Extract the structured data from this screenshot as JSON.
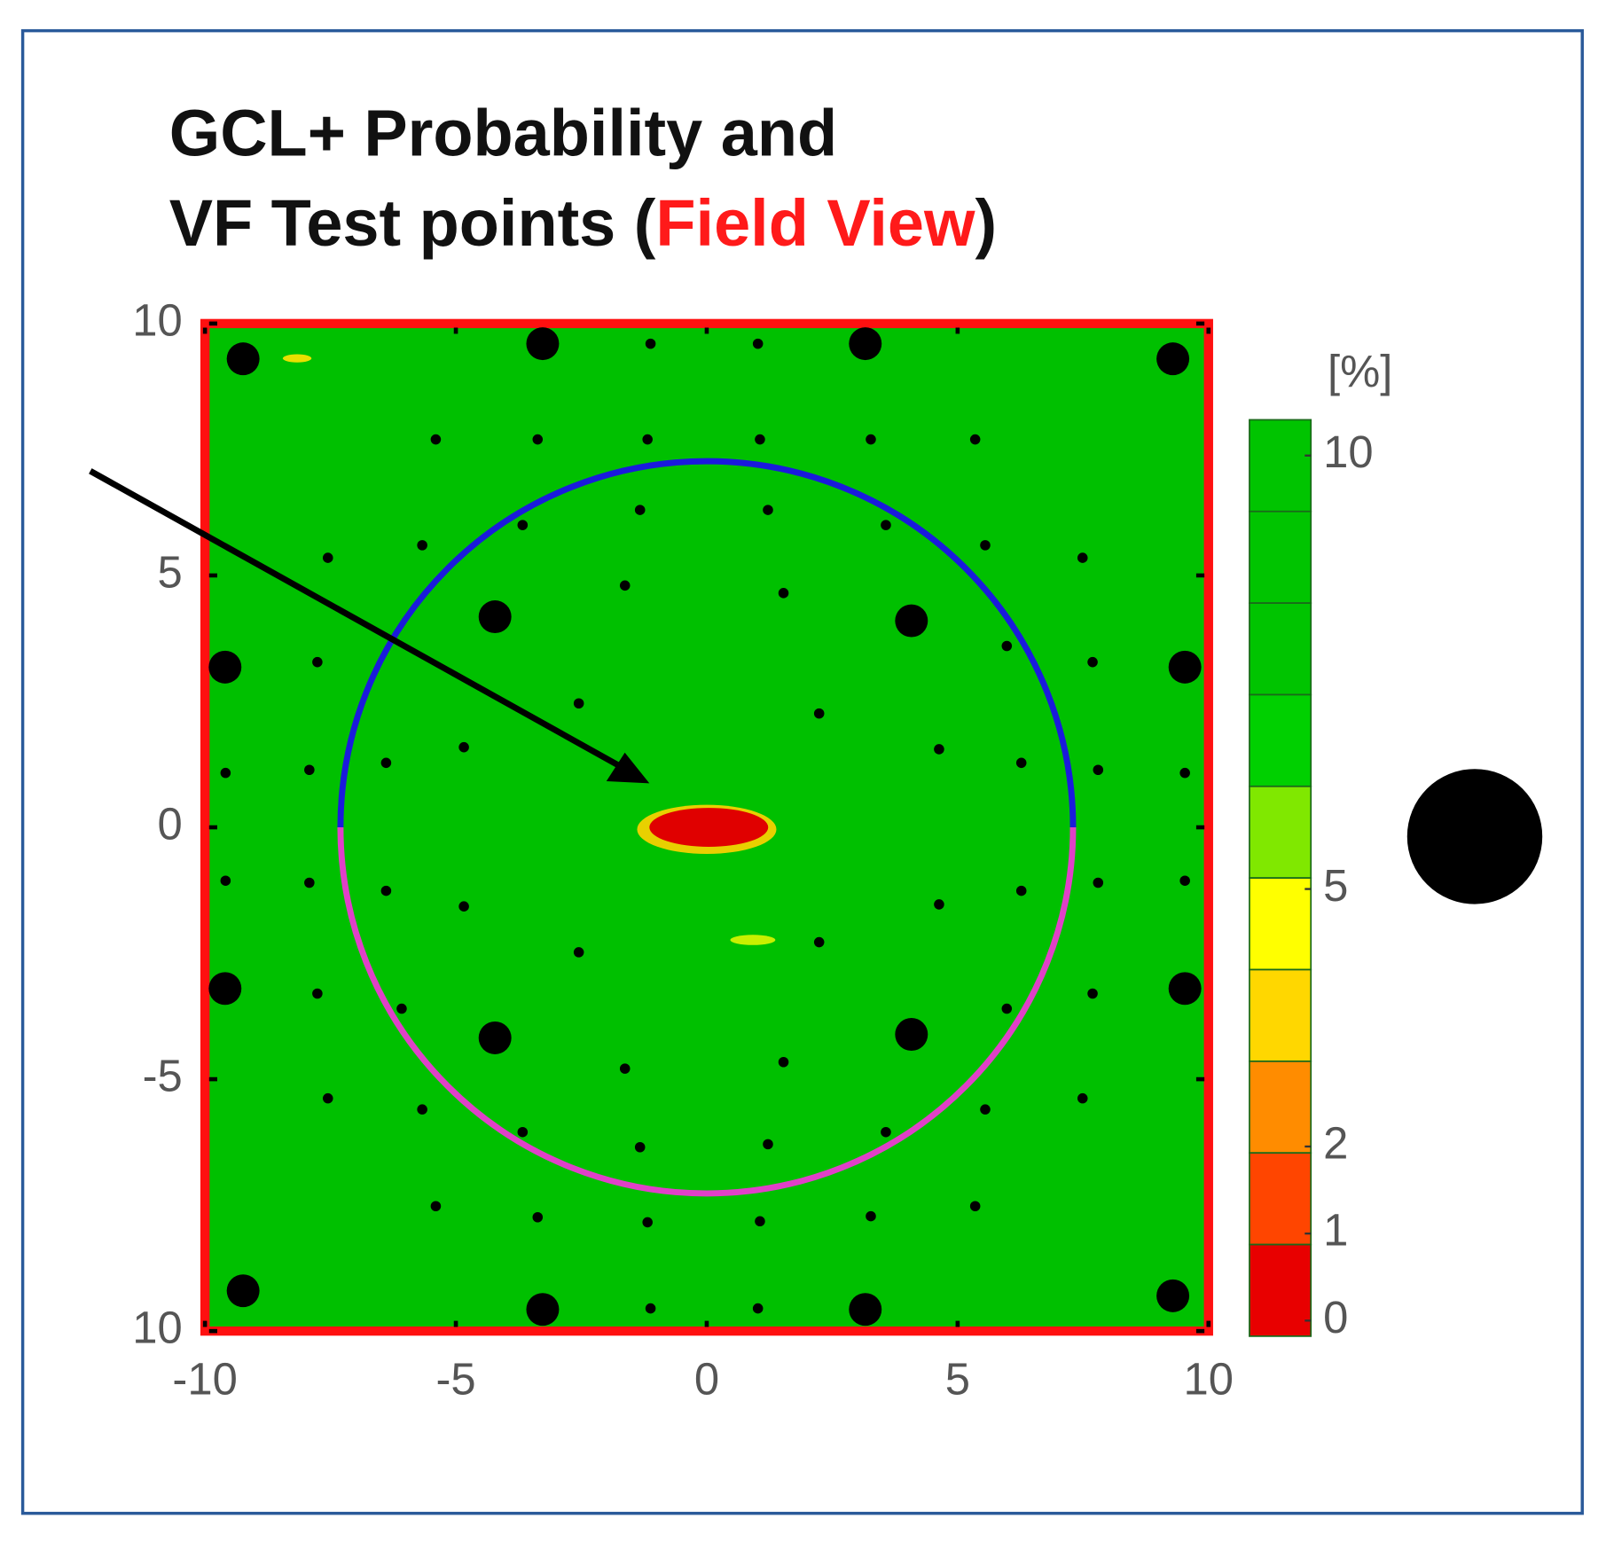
{
  "chart_data": {
    "type": "scatter",
    "title_line1": "GCL+ Probability and",
    "title_line2_start": "VF Test points (",
    "title_highlight": "Field View",
    "title_line2_end": ")",
    "title_highlight_color": "#ff1a1a",
    "background_color": "#00c000",
    "border_color": "#ff1010",
    "xlim": [
      -10,
      10
    ],
    "ylim": [
      -10,
      10
    ],
    "xticks": [
      -10,
      -5,
      0,
      5,
      10
    ],
    "yticks": [
      10,
      5,
      0,
      -5,
      {
        "value": -10,
        "label": "10"
      }
    ],
    "circle": {
      "radius": 7.3,
      "upper_color": "#1a1adc",
      "lower_color": "#e040c8"
    },
    "series": [
      {
        "color": "#000000",
        "size": 5,
        "x": [
          -1.12,
          1.02,
          -5.4,
          -3.37,
          -1.18,
          1.06,
          3.27,
          5.35,
          -1.33,
          1.22,
          -3.67,
          3.57,
          -5.67,
          5.55,
          -7.55,
          7.49,
          -1.63,
          1.53,
          5.98,
          -7.76,
          7.69,
          -2.55,
          2.24,
          -4.84,
          4.63,
          -6.39,
          6.27,
          -9.59,
          -7.92,
          7.8,
          9.53,
          -9.59,
          -7.92,
          -6.39,
          -4.84,
          4.63,
          6.27,
          7.8,
          9.53,
          -2.55,
          2.24,
          -7.76,
          -6.08,
          5.98,
          7.69,
          -1.63,
          1.53,
          -7.55,
          -5.67,
          5.55,
          7.49,
          -3.67,
          -1.33,
          1.22,
          3.57,
          -5.4,
          -3.37,
          -1.18,
          1.06,
          3.27,
          5.35,
          -1.12,
          1.02
        ],
        "y": [
          9.6,
          9.6,
          7.7,
          7.7,
          7.7,
          7.7,
          7.7,
          7.7,
          6.3,
          6.3,
          6.0,
          6.0,
          5.6,
          5.6,
          5.35,
          5.35,
          4.8,
          4.65,
          3.6,
          3.28,
          3.28,
          2.46,
          2.26,
          1.59,
          1.55,
          1.28,
          1.28,
          1.08,
          1.14,
          1.14,
          1.08,
          -1.06,
          -1.1,
          -1.26,
          -1.57,
          -1.53,
          -1.26,
          -1.1,
          -1.06,
          -2.48,
          -2.28,
          -3.3,
          -3.6,
          -3.6,
          -3.3,
          -4.79,
          -4.66,
          -5.38,
          -5.6,
          -5.6,
          -5.38,
          -6.05,
          -6.35,
          -6.29,
          -6.05,
          -7.52,
          -7.74,
          -7.84,
          -7.82,
          -7.72,
          -7.52,
          -9.55,
          -9.55
        ]
      },
      {
        "color": "#000000",
        "size": 16,
        "x": [
          -9.24,
          -3.27,
          3.16,
          9.29,
          -4.22,
          4.08,
          -9.6,
          9.53,
          -9.6,
          9.53,
          -4.22,
          4.08,
          -9.24,
          -3.27,
          3.16,
          9.29
        ],
        "y": [
          9.3,
          9.6,
          9.6,
          9.3,
          4.18,
          4.1,
          3.18,
          3.18,
          -3.2,
          -3.2,
          -4.18,
          -4.11,
          -9.2,
          -9.57,
          -9.57,
          -9.3
        ]
      }
    ],
    "colorbar": {
      "label": "[%]",
      "ticks": [
        10,
        5,
        2,
        1,
        0
      ],
      "colors": [
        "#00c400",
        "#00c400",
        "#00c400",
        "#00d000",
        "#80e800",
        "#ffff00",
        "#ffd700",
        "#ff8c00",
        "#ff4500",
        "#e80000"
      ]
    }
  }
}
